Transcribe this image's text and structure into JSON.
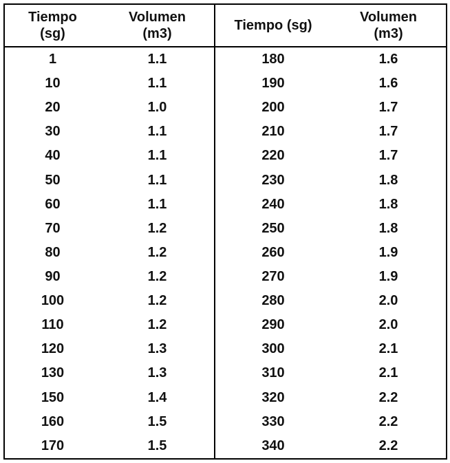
{
  "table": {
    "header": [
      [
        "Tiempo",
        "(sg)"
      ],
      [
        "Volumen",
        "(m3)"
      ],
      [
        "Tiempo (sg)"
      ],
      [
        "Volumen",
        "(m3)"
      ]
    ],
    "rows": [
      [
        "1",
        "1.1",
        "180",
        "1.6"
      ],
      [
        "10",
        "1.1",
        "190",
        "1.6"
      ],
      [
        "20",
        "1.0",
        "200",
        "1.7"
      ],
      [
        "30",
        "1.1",
        "210",
        "1.7"
      ],
      [
        "40",
        "1.1",
        "220",
        "1.7"
      ],
      [
        "50",
        "1.1",
        "230",
        "1.8"
      ],
      [
        "60",
        "1.1",
        "240",
        "1.8"
      ],
      [
        "70",
        "1.2",
        "250",
        "1.8"
      ],
      [
        "80",
        "1.2",
        "260",
        "1.9"
      ],
      [
        "90",
        "1.2",
        "270",
        "1.9"
      ],
      [
        "100",
        "1.2",
        "280",
        "2.0"
      ],
      [
        "110",
        "1.2",
        "290",
        "2.0"
      ],
      [
        "120",
        "1.3",
        "300",
        "2.1"
      ],
      [
        "130",
        "1.3",
        "310",
        "2.1"
      ],
      [
        "150",
        "1.4",
        "320",
        "2.2"
      ],
      [
        "160",
        "1.5",
        "330",
        "2.2"
      ],
      [
        "170",
        "1.5",
        "340",
        "2.2"
      ]
    ]
  }
}
